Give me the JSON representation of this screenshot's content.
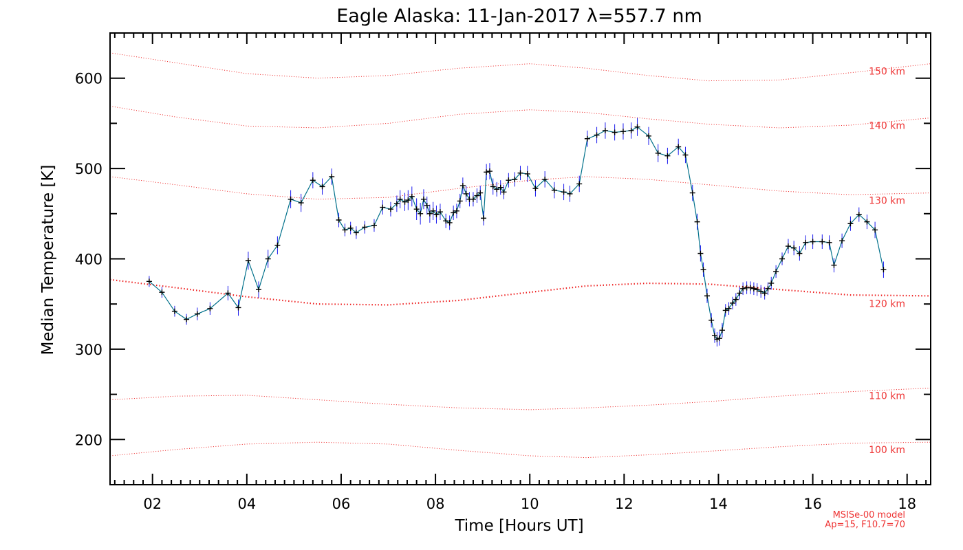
{
  "chart_data": {
    "type": "line",
    "title": "Eagle Alaska: 11-Jan-2017 λ=557.7 nm",
    "xlabel": "Time [Hours UT]",
    "ylabel": "Median Temperature [K]",
    "xlim": [
      1.1,
      18.5
    ],
    "ylim": [
      150,
      650
    ],
    "xticks": [
      {
        "value": 2,
        "label": "02"
      },
      {
        "value": 4,
        "label": "04"
      },
      {
        "value": 6,
        "label": "06"
      },
      {
        "value": 8,
        "label": "08"
      },
      {
        "value": 10,
        "label": "10"
      },
      {
        "value": 12,
        "label": "12"
      },
      {
        "value": 14,
        "label": "14"
      },
      {
        "value": 16,
        "label": "16"
      },
      {
        "value": 18,
        "label": "18"
      }
    ],
    "yticks": [
      {
        "value": 200,
        "label": "200"
      },
      {
        "value": 300,
        "label": "300"
      },
      {
        "value": 400,
        "label": "400"
      },
      {
        "value": 500,
        "label": "500"
      },
      {
        "value": 600,
        "label": "600"
      }
    ],
    "grid": false,
    "colors": {
      "series": "#00708a",
      "marker": "#000000",
      "errorbar": "#1a1aee",
      "model": "#ee2222"
    },
    "series": [
      {
        "points": [
          [
            1.93,
            375,
            6
          ],
          [
            2.2,
            363,
            6
          ],
          [
            2.47,
            342,
            6
          ],
          [
            2.72,
            333,
            6
          ],
          [
            2.95,
            339,
            7
          ],
          [
            3.22,
            345,
            7
          ],
          [
            3.6,
            362,
            8
          ],
          [
            3.82,
            346,
            9
          ],
          [
            4.03,
            398,
            10
          ],
          [
            4.25,
            366,
            9
          ],
          [
            4.45,
            400,
            10
          ],
          [
            4.65,
            415,
            10
          ],
          [
            4.93,
            466,
            10
          ],
          [
            5.15,
            462,
            10
          ],
          [
            5.4,
            487,
            9
          ],
          [
            5.6,
            480,
            9
          ],
          [
            5.8,
            491,
            9
          ],
          [
            5.95,
            443,
            8
          ],
          [
            6.08,
            432,
            7
          ],
          [
            6.2,
            434,
            7
          ],
          [
            6.32,
            429,
            7
          ],
          [
            6.5,
            435,
            7
          ],
          [
            6.7,
            437,
            7
          ],
          [
            6.88,
            457,
            8
          ],
          [
            7.05,
            455,
            8
          ],
          [
            7.18,
            461,
            9
          ],
          [
            7.25,
            466,
            10
          ],
          [
            7.35,
            463,
            10
          ],
          [
            7.42,
            465,
            11
          ],
          [
            7.5,
            469,
            11
          ],
          [
            7.6,
            455,
            12
          ],
          [
            7.68,
            450,
            12
          ],
          [
            7.75,
            466,
            11
          ],
          [
            7.82,
            459,
            10
          ],
          [
            7.88,
            450,
            10
          ],
          [
            7.95,
            453,
            10
          ],
          [
            8.02,
            449,
            10
          ],
          [
            8.1,
            452,
            9
          ],
          [
            8.22,
            442,
            8
          ],
          [
            8.3,
            440,
            8
          ],
          [
            8.38,
            451,
            8
          ],
          [
            8.45,
            453,
            8
          ],
          [
            8.52,
            464,
            8
          ],
          [
            8.58,
            481,
            9
          ],
          [
            8.65,
            472,
            9
          ],
          [
            8.72,
            466,
            8
          ],
          [
            8.8,
            466,
            8
          ],
          [
            8.88,
            470,
            8
          ],
          [
            8.95,
            473,
            8
          ],
          [
            9.02,
            445,
            8
          ],
          [
            9.08,
            496,
            9
          ],
          [
            9.15,
            497,
            9
          ],
          [
            9.22,
            480,
            9
          ],
          [
            9.3,
            477,
            8
          ],
          [
            9.38,
            479,
            8
          ],
          [
            9.45,
            474,
            8
          ],
          [
            9.55,
            487,
            8
          ],
          [
            9.68,
            488,
            8
          ],
          [
            9.8,
            495,
            8
          ],
          [
            9.95,
            494,
            9
          ],
          [
            10.12,
            478,
            9
          ],
          [
            10.32,
            488,
            9
          ],
          [
            10.52,
            476,
            9
          ],
          [
            10.72,
            474,
            9
          ],
          [
            10.85,
            472,
            9
          ],
          [
            11.05,
            483,
            9
          ],
          [
            11.22,
            533,
            9
          ],
          [
            11.42,
            537,
            9
          ],
          [
            11.6,
            542,
            9
          ],
          [
            11.8,
            540,
            9
          ],
          [
            11.98,
            541,
            9
          ],
          [
            12.15,
            542,
            9
          ],
          [
            12.28,
            546,
            10
          ],
          [
            12.52,
            536,
            10
          ],
          [
            12.72,
            517,
            10
          ],
          [
            12.92,
            514,
            9
          ],
          [
            13.15,
            524,
            9
          ],
          [
            13.3,
            515,
            9
          ],
          [
            13.45,
            473,
            9
          ],
          [
            13.55,
            441,
            9
          ],
          [
            13.62,
            406,
            9
          ],
          [
            13.68,
            388,
            8
          ],
          [
            13.76,
            359,
            8
          ],
          [
            13.85,
            332,
            8
          ],
          [
            13.92,
            315,
            8
          ],
          [
            13.97,
            311,
            8
          ],
          [
            14.02,
            312,
            8
          ],
          [
            14.08,
            321,
            8
          ],
          [
            14.15,
            343,
            7
          ],
          [
            14.22,
            345,
            7
          ],
          [
            14.3,
            351,
            7
          ],
          [
            14.37,
            355,
            7
          ],
          [
            14.45,
            362,
            7
          ],
          [
            14.52,
            367,
            7
          ],
          [
            14.6,
            368,
            7
          ],
          [
            14.68,
            368,
            7
          ],
          [
            14.75,
            367,
            7
          ],
          [
            14.82,
            366,
            7
          ],
          [
            14.9,
            364,
            7
          ],
          [
            14.98,
            362,
            7
          ],
          [
            15.05,
            367,
            7
          ],
          [
            15.12,
            373,
            7
          ],
          [
            15.22,
            386,
            7
          ],
          [
            15.35,
            400,
            7
          ],
          [
            15.48,
            414,
            8
          ],
          [
            15.6,
            412,
            8
          ],
          [
            15.72,
            406,
            8
          ],
          [
            15.85,
            418,
            8
          ],
          [
            16.0,
            419,
            8
          ],
          [
            16.2,
            419,
            8
          ],
          [
            16.35,
            418,
            8
          ],
          [
            16.45,
            393,
            8
          ],
          [
            16.62,
            420,
            8
          ],
          [
            16.8,
            439,
            8
          ],
          [
            16.98,
            449,
            8
          ],
          [
            17.15,
            441,
            8
          ],
          [
            17.32,
            432,
            9
          ],
          [
            17.5,
            388,
            9
          ]
        ]
      }
    ],
    "model_lines": [
      {
        "label": "150 km",
        "points": [
          [
            1.1,
            628
          ],
          [
            2.5,
            617
          ],
          [
            4,
            605
          ],
          [
            5.5,
            600
          ],
          [
            7,
            603
          ],
          [
            8.5,
            611
          ],
          [
            10,
            616
          ],
          [
            11.2,
            611
          ],
          [
            12.5,
            603
          ],
          [
            13.8,
            597
          ],
          [
            15.3,
            598
          ],
          [
            16.8,
            606
          ],
          [
            18.5,
            616
          ]
        ]
      },
      {
        "label": "140 km",
        "points": [
          [
            1.1,
            569
          ],
          [
            2.5,
            557
          ],
          [
            4,
            547
          ],
          [
            5.5,
            545
          ],
          [
            7,
            550
          ],
          [
            8.5,
            560
          ],
          [
            10,
            565
          ],
          [
            11.2,
            562
          ],
          [
            12.5,
            555
          ],
          [
            13.8,
            549
          ],
          [
            15.3,
            545
          ],
          [
            16.8,
            548
          ],
          [
            18.5,
            556
          ]
        ]
      },
      {
        "label": "130 km",
        "points": [
          [
            1.1,
            491
          ],
          [
            2.5,
            482
          ],
          [
            4,
            472
          ],
          [
            5.5,
            466
          ],
          [
            7,
            468
          ],
          [
            8.5,
            478
          ],
          [
            10,
            487
          ],
          [
            11.2,
            491
          ],
          [
            12.5,
            488
          ],
          [
            13.8,
            482
          ],
          [
            15.3,
            475
          ],
          [
            16.8,
            471
          ],
          [
            18.5,
            473
          ]
        ]
      },
      {
        "label": "120 km",
        "points": [
          [
            1.1,
            377
          ],
          [
            2.5,
            368
          ],
          [
            4,
            358
          ],
          [
            5.5,
            350
          ],
          [
            7,
            349
          ],
          [
            8.5,
            354
          ],
          [
            10,
            363
          ],
          [
            11.2,
            370
          ],
          [
            12.5,
            373
          ],
          [
            13.8,
            372
          ],
          [
            15.3,
            366
          ],
          [
            16.8,
            360
          ],
          [
            18.5,
            359
          ]
        ]
      },
      {
        "label": "110 km",
        "points": [
          [
            1.1,
            244
          ],
          [
            2.5,
            248
          ],
          [
            4,
            249
          ],
          [
            5.5,
            244
          ],
          [
            7,
            239
          ],
          [
            8.5,
            235
          ],
          [
            10,
            233
          ],
          [
            11.2,
            235
          ],
          [
            12.5,
            238
          ],
          [
            13.8,
            242
          ],
          [
            15.3,
            248
          ],
          [
            16.8,
            253
          ],
          [
            18.5,
            257
          ]
        ]
      },
      {
        "label": "100 km",
        "points": [
          [
            1.1,
            182
          ],
          [
            2.5,
            189
          ],
          [
            4,
            195
          ],
          [
            5.5,
            197
          ],
          [
            7,
            195
          ],
          [
            8.5,
            188
          ],
          [
            10,
            182
          ],
          [
            11.2,
            180
          ],
          [
            12.5,
            183
          ],
          [
            13.8,
            187
          ],
          [
            15.3,
            192
          ],
          [
            16.8,
            196
          ],
          [
            18.5,
            197
          ]
        ]
      }
    ],
    "model_note": [
      "MSISe-00 model",
      "Ap=15, F10.7=70"
    ]
  }
}
